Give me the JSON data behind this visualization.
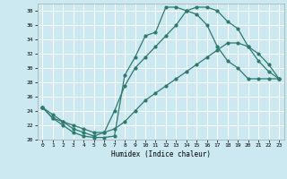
{
  "xlabel": "Humidex (Indice chaleur)",
  "bg_color": "#cce8f0",
  "grid_color": "#ffffff",
  "line_color": "#2d7a6e",
  "xlim": [
    -0.5,
    23.5
  ],
  "ylim": [
    20,
    39
  ],
  "xticks": [
    0,
    1,
    2,
    3,
    4,
    5,
    6,
    7,
    8,
    9,
    10,
    11,
    12,
    13,
    14,
    15,
    16,
    17,
    18,
    19,
    20,
    21,
    22,
    23
  ],
  "yticks": [
    20,
    22,
    24,
    26,
    28,
    30,
    32,
    34,
    36,
    38
  ],
  "curve1_x": [
    0,
    1,
    2,
    3,
    4,
    5,
    6,
    7,
    8,
    9,
    10,
    11,
    12,
    13,
    14,
    15,
    16,
    17,
    18,
    19,
    20,
    21,
    22,
    23
  ],
  "curve1_y": [
    24.5,
    23.0,
    22.0,
    21.0,
    20.5,
    20.3,
    20.3,
    20.5,
    29.0,
    31.5,
    34.5,
    35.0,
    38.5,
    38.5,
    38.0,
    37.5,
    36.0,
    33.0,
    31.0,
    30.0,
    28.5,
    28.5,
    28.5,
    28.5
  ],
  "curve2_x": [
    0,
    1,
    2,
    3,
    4,
    5,
    6,
    7,
    8,
    9,
    10,
    11,
    12,
    13,
    14,
    15,
    16,
    17,
    18,
    19,
    20,
    21,
    22,
    23
  ],
  "curve2_y": [
    24.5,
    23.0,
    22.5,
    21.5,
    21.0,
    20.5,
    21.0,
    24.0,
    27.5,
    30.0,
    31.5,
    33.0,
    34.5,
    36.0,
    38.0,
    38.5,
    38.5,
    38.0,
    36.5,
    35.5,
    33.0,
    31.0,
    29.5,
    28.5
  ],
  "curve3_x": [
    0,
    1,
    2,
    3,
    4,
    5,
    6,
    7,
    8,
    9,
    10,
    11,
    12,
    13,
    14,
    15,
    16,
    17,
    18,
    19,
    20,
    21,
    22,
    23
  ],
  "curve3_y": [
    24.5,
    23.5,
    22.5,
    22.0,
    21.5,
    21.0,
    21.0,
    21.5,
    22.5,
    24.0,
    25.5,
    26.5,
    27.5,
    28.5,
    29.5,
    30.5,
    31.5,
    32.5,
    33.5,
    33.5,
    33.0,
    32.0,
    30.5,
    28.5
  ]
}
